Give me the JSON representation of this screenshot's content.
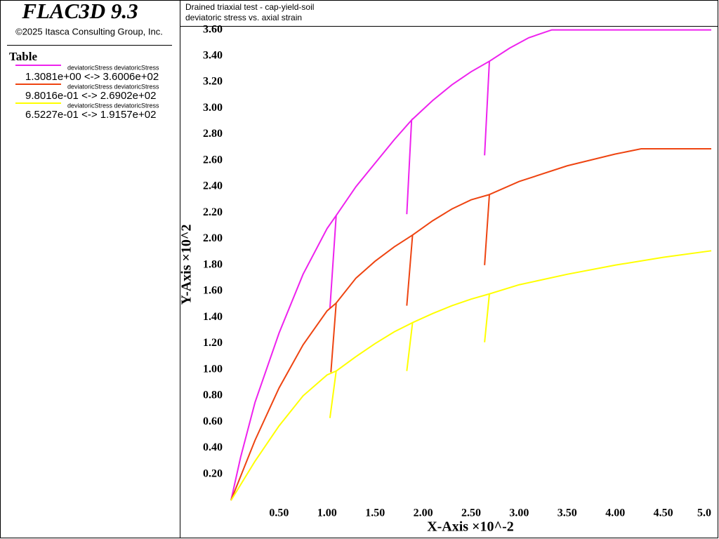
{
  "chart_data": {
    "type": "line",
    "product": "FLAC3D 9.3",
    "copyright": "©2025 Itasca Consulting Group, Inc.",
    "legend_title": "Table",
    "title": "Drained triaxial test - cap-yield-soil",
    "subtitle": "deviatoric stress vs. axial strain",
    "xlabel": "X-Axis ×10^-2",
    "ylabel": "Y-Axis ×10^2",
    "xlim": [
      0,
      5.0
    ],
    "ylim": [
      0,
      3.63
    ],
    "xticks": [
      {
        "value": 0.5,
        "label": "0.50"
      },
      {
        "value": 1.0,
        "label": "1.00"
      },
      {
        "value": 1.5,
        "label": "1.50"
      },
      {
        "value": 2.0,
        "label": "2.00"
      },
      {
        "value": 2.5,
        "label": "2.50"
      },
      {
        "value": 3.0,
        "label": "3.00"
      },
      {
        "value": 3.5,
        "label": "3.50"
      },
      {
        "value": 4.0,
        "label": "4.00"
      },
      {
        "value": 4.5,
        "label": "4.50"
      },
      {
        "value": 5.0,
        "label": "5.0"
      }
    ],
    "yticks": [
      {
        "value": 0.2,
        "label": "0.20"
      },
      {
        "value": 0.4,
        "label": "0.40"
      },
      {
        "value": 0.6,
        "label": "0.60"
      },
      {
        "value": 0.8,
        "label": "0.80"
      },
      {
        "value": 1.0,
        "label": "1.00"
      },
      {
        "value": 1.2,
        "label": "1.20"
      },
      {
        "value": 1.4,
        "label": "1.40"
      },
      {
        "value": 1.6,
        "label": "1.60"
      },
      {
        "value": 1.8,
        "label": "1.80"
      },
      {
        "value": 2.0,
        "label": "2.00"
      },
      {
        "value": 2.2,
        "label": "2.20"
      },
      {
        "value": 2.4,
        "label": "2.40"
      },
      {
        "value": 2.6,
        "label": "2.60"
      },
      {
        "value": 2.8,
        "label": "2.80"
      },
      {
        "value": 3.0,
        "label": "3.00"
      },
      {
        "value": 3.2,
        "label": "3.20"
      },
      {
        "value": 3.4,
        "label": "3.40"
      },
      {
        "value": 3.6,
        "label": "3.60"
      }
    ],
    "series": [
      {
        "name": "deviatoricStress deviatoricStress",
        "range_label": "1.3081e+00 <-> 3.6006e+02",
        "color": "#ee22ee",
        "x": [
          0,
          0.1,
          0.25,
          0.5,
          0.75,
          1.0,
          1.095,
          1.03,
          1.095,
          1.3,
          1.5,
          1.7,
          1.88,
          1.83,
          1.88,
          2.1,
          2.3,
          2.5,
          2.69,
          2.64,
          2.69,
          2.9,
          3.1,
          3.34,
          5.0
        ],
        "values": [
          0,
          0.33,
          0.75,
          1.28,
          1.73,
          2.08,
          2.18,
          1.47,
          2.18,
          2.4,
          2.58,
          2.76,
          2.91,
          2.19,
          2.91,
          3.06,
          3.18,
          3.28,
          3.36,
          2.64,
          3.36,
          3.46,
          3.54,
          3.6,
          3.6
        ]
      },
      {
        "name": "deviatoricStress deviatoricStress",
        "range_label": "9.8016e-01 <->  2.6902e+02",
        "color": "#ee4411",
        "x": [
          0,
          0.25,
          0.5,
          0.75,
          1.0,
          1.095,
          1.04,
          1.095,
          1.3,
          1.5,
          1.7,
          1.89,
          1.83,
          1.89,
          2.1,
          2.3,
          2.5,
          2.69,
          2.64,
          2.69,
          3.0,
          3.5,
          4.0,
          4.27,
          5.0
        ],
        "values": [
          0,
          0.46,
          0.86,
          1.19,
          1.45,
          1.51,
          0.98,
          1.51,
          1.7,
          1.83,
          1.94,
          2.03,
          1.49,
          2.03,
          2.14,
          2.23,
          2.3,
          2.34,
          1.8,
          2.34,
          2.44,
          2.56,
          2.65,
          2.69,
          2.69
        ]
      },
      {
        "name": "deviatoricStress deviatoricStress",
        "range_label": "6.5227e-01 <->  1.9157e+02",
        "color": "#ffff00",
        "x": [
          0,
          0.25,
          0.5,
          0.75,
          1.0,
          1.095,
          1.03,
          1.095,
          1.3,
          1.5,
          1.7,
          1.89,
          1.83,
          1.89,
          2.1,
          2.3,
          2.5,
          2.69,
          2.64,
          2.69,
          3.0,
          3.5,
          4.0,
          4.5,
          5.0
        ],
        "values": [
          0,
          0.3,
          0.57,
          0.8,
          0.96,
          0.99,
          0.63,
          0.99,
          1.1,
          1.2,
          1.29,
          1.36,
          0.99,
          1.36,
          1.43,
          1.49,
          1.54,
          1.58,
          1.21,
          1.58,
          1.65,
          1.73,
          1.8,
          1.86,
          1.91
        ]
      }
    ]
  }
}
